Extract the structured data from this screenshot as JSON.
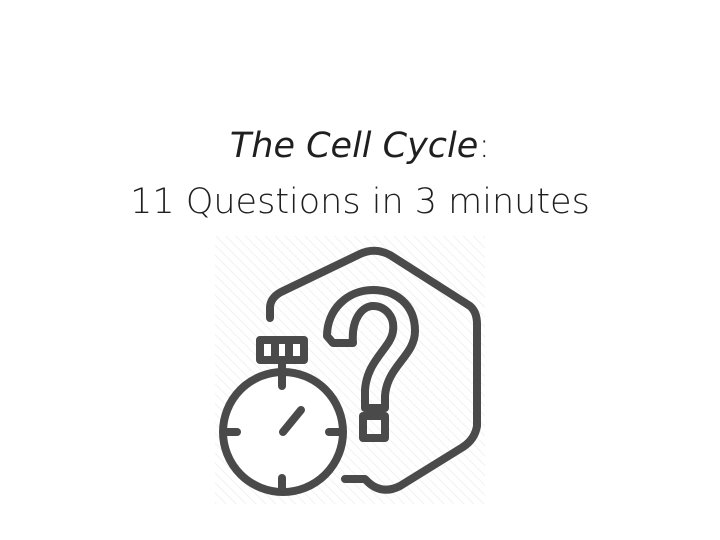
{
  "slide": {
    "title_italic": "The Cell Cycle",
    "title_colon": ":",
    "subtitle": "11 Questions in 3 minutes"
  },
  "illustration": {
    "icons": [
      "stopwatch-icon",
      "question-mark-icon",
      "hexagon-outline-icon"
    ],
    "stroke_color": "#4a4a4a",
    "hatch_color": "#f1f1f1"
  }
}
